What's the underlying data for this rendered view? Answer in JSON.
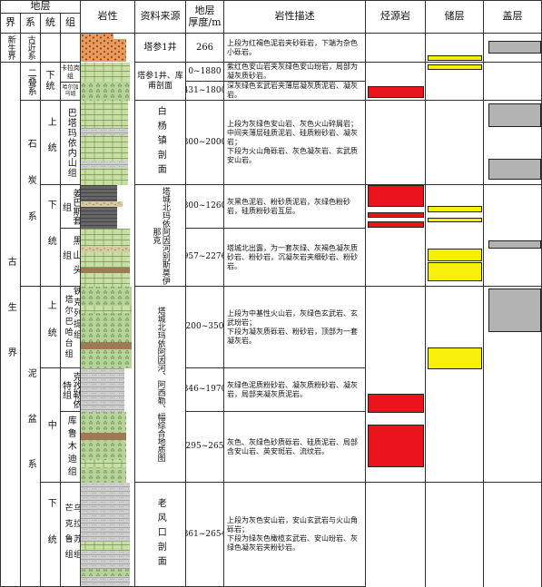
{
  "header": {
    "strata": "地层",
    "jie": "界",
    "xi": "系",
    "tong": "统",
    "zu": "组",
    "lithology": "岩性",
    "source": "资料来源",
    "thickness": "地层\n厚度/m",
    "description": "岩性描述",
    "source_rock": "烃源岩",
    "reservoir": "储层",
    "caprock": "盖层"
  },
  "eras": {
    "cenozoic": "新生界",
    "paleozoic": "古生界"
  },
  "systems": {
    "paleogene": "古近系",
    "permian": "二叠系",
    "carboniferous": "石炭系",
    "devonian": "泥盆系"
  },
  "series": {
    "lower": "下统",
    "lower_short": "下",
    "upper": "上统",
    "upper_short": "上",
    "middle": "中",
    "tong": "统",
    "tong2": "统"
  },
  "formations": {
    "f1": "卡拉岗组",
    "f2": "哈尔加乌组",
    "f3": "巴塔玛依内山组",
    "f4": "姜巴斯套组",
    "f5": "黑山头组",
    "f6": "塔尔巴哈台组",
    "f7": "铁克列提组",
    "f8": "克孜勒依特组",
    "f9": "库鲁木迪组",
    "f10": "芒克鲁组",
    "f11": "乌拉苏组"
  },
  "sources": {
    "s1": "塔参1井",
    "s2": "塔参1井、库甫剖面",
    "s3": "白杨镇剖面",
    "s4": "塔城北玛依阿因河别斯莫伊那克",
    "s5": "塔城北玛依阿因河、阿西勒、幅综合地质图",
    "s6": "老风口剖面"
  },
  "thickness": {
    "t1": "266",
    "t2": "0~1880",
    "t3": "431~1800",
    "t4": "300~2000",
    "t5": "800~1260",
    "t6": "957~2276",
    "t7": "1200~3500",
    "t8": "346~1970",
    "t9": "2295~2654",
    "t10": "361~2654"
  },
  "descriptions": {
    "d1": "上段为红褐色泥岩夹砂砾岩，下端为杂色小砾岩。",
    "d2": "紫红色安山岩夹灰绿色安山玢岩，局部为凝灰质砂岩。",
    "d3": "深灰绿色玄武岩夹薄层凝灰质泥岩、凝灰岩。",
    "d4": "上段为灰绿色安山岩、灰色火山碎屑岩；\n中间夹薄层硅质泥岩、硅质粉砂岩、凝灰岩；\n下段为火山角砾岩、灰色凝灰岩、玄武质安山岩。",
    "d5": "灰黑色泥岩、粉砂质泥岩，灰绿色粉砂岩，硅质粉砂岩互层。",
    "d6": "塔城北出露，为一套灰绿、灰褐色凝灰质砂岩、粉砂岩，沉凝灰岩夹细砂岩、粉砂岩。",
    "d7": "上段为中基性火山岩，灰绿色玄武岩、玄武玢岩；\n下段为凝灰质砾岩、粉砂岩，顶部为一套凝灰岩。",
    "d8": "灰绿色泥质粉砂岩、凝灰质粉砂岩、凝灰岩，局部夹凝灰质泥岩。",
    "d9": "灰色、灰绿色砂质砾岩、硅质泥岩、局部含安山岩、英安斑岩、流纹岩。",
    "d10": "上段为灰色安山岩，安山玄武岩与火山角砾岩；\n下段为绿灰色橄榄玄武岩、安山玢岩、灰绿色凝灰岩夹粉砂岩。"
  },
  "colors": {
    "source_rock": "#e8131b",
    "reservoir": "#f6ef0a",
    "caprock": "#b3b3b3"
  }
}
